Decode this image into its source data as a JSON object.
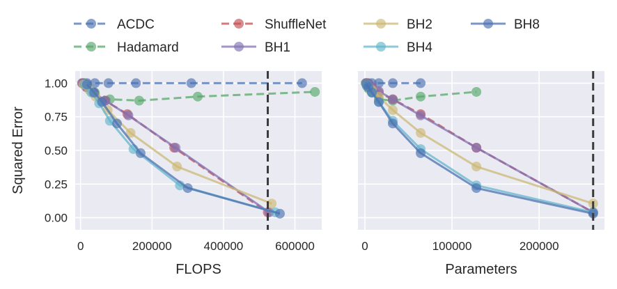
{
  "legend": [
    "ACDC",
    "Hadamard",
    "ShuffleNet",
    "BH1",
    "BH2",
    "BH4",
    "BH8"
  ],
  "series_styles": [
    {
      "name": "ACDC",
      "color": "#4c72b0",
      "dash": true
    },
    {
      "name": "Hadamard",
      "color": "#55a868",
      "dash": true
    },
    {
      "name": "ShuffleNet",
      "color": "#c44e52",
      "dash": true
    },
    {
      "name": "BH1",
      "color": "#8172b2",
      "dash": false
    },
    {
      "name": "BH2",
      "color": "#ccb974",
      "dash": false
    },
    {
      "name": "BH4",
      "color": "#64b5cd",
      "dash": false
    },
    {
      "name": "BH8",
      "color": "#4c72b0",
      "dash": false
    }
  ],
  "chart_data": [
    {
      "type": "line",
      "xlabel": "FLOPS",
      "ylabel": "Squared Error",
      "xlim": [
        -15000,
        675000
      ],
      "ylim": [
        -0.09,
        1.09
      ],
      "xticks": [
        0,
        200000,
        400000,
        600000
      ],
      "xtick_labels": [
        "0",
        "200000",
        "400000",
        "600000"
      ],
      "yticks": [
        0.0,
        0.25,
        0.5,
        0.75,
        1.0
      ],
      "ytick_labels": [
        "0.00",
        "0.25",
        "0.50",
        "0.75",
        "1.00"
      ],
      "vline": 524000,
      "series": [
        {
          "name": "ACDC",
          "x": [
            8000,
            18000,
            40000,
            78000,
            155000,
            310000,
            620000
          ],
          "y": [
            1.0,
            1.0,
            1.0,
            1.0,
            1.0,
            1.0,
            1.0
          ]
        },
        {
          "name": "Hadamard",
          "x": [
            10000,
            20000,
            40000,
            82000,
            164000,
            328000,
            656000
          ],
          "y": [
            1.0,
            0.97,
            0.93,
            0.88,
            0.87,
            0.9,
            0.935
          ]
        },
        {
          "name": "ShuffleNet",
          "x": [
            4000,
            16000,
            35000,
            68000,
            131000,
            262000,
            524000
          ],
          "y": [
            1.0,
            0.97,
            0.93,
            0.87,
            0.77,
            0.52,
            0.04
          ]
        },
        {
          "name": "BH1",
          "x": [
            5000,
            17000,
            36000,
            70000,
            134000,
            266000,
            528000
          ],
          "y": [
            1.0,
            0.97,
            0.93,
            0.87,
            0.76,
            0.52,
            0.04
          ]
        },
        {
          "name": "BH2",
          "x": [
            8000,
            24000,
            42000,
            76000,
            140000,
            270000,
            535000
          ],
          "y": [
            0.99,
            0.95,
            0.9,
            0.8,
            0.63,
            0.38,
            0.105
          ]
        },
        {
          "name": "BH4",
          "x": [
            12000,
            30000,
            52000,
            82000,
            148000,
            278000,
            545000
          ],
          "y": [
            0.99,
            0.93,
            0.85,
            0.72,
            0.51,
            0.24,
            0.04
          ]
        },
        {
          "name": "BH8",
          "x": [
            18000,
            38000,
            60000,
            102000,
            168000,
            300000,
            558000
          ],
          "y": [
            0.99,
            0.93,
            0.86,
            0.7,
            0.48,
            0.22,
            0.03
          ]
        }
      ]
    },
    {
      "type": "line",
      "xlabel": "Parameters",
      "ylabel": "",
      "xlim": [
        -8000,
        275000
      ],
      "ylim": [
        -0.09,
        1.09
      ],
      "xticks": [
        0,
        100000,
        200000
      ],
      "xtick_labels": [
        "0",
        "100000",
        "200000"
      ],
      "yticks": [
        0.0,
        0.25,
        0.5,
        0.75,
        1.0
      ],
      "ytick_labels": [],
      "vline": 262000,
      "series": [
        {
          "name": "ACDC",
          "x": [
            1000,
            2000,
            4000,
            8000,
            16000,
            32000,
            64000
          ],
          "y": [
            1.0,
            1.0,
            1.0,
            1.0,
            1.0,
            1.0,
            1.0
          ]
        },
        {
          "name": "Hadamard",
          "x": [
            1000,
            2000,
            4000,
            8000,
            16000,
            32000,
            64000,
            128000
          ],
          "y": [
            1.0,
            0.98,
            0.96,
            0.93,
            0.88,
            0.87,
            0.9,
            0.935
          ]
        },
        {
          "name": "ShuffleNet",
          "x": [
            2000,
            4000,
            8000,
            16000,
            32000,
            64000,
            128000,
            262000
          ],
          "y": [
            1.0,
            0.98,
            0.97,
            0.93,
            0.88,
            0.77,
            0.52,
            0.04
          ]
        },
        {
          "name": "BH1",
          "x": [
            2000,
            4000,
            8000,
            16000,
            32000,
            64000,
            128000,
            262000
          ],
          "y": [
            1.0,
            0.98,
            0.97,
            0.94,
            0.88,
            0.76,
            0.52,
            0.04
          ]
        },
        {
          "name": "BH2",
          "x": [
            2000,
            4000,
            8000,
            16000,
            32000,
            64000,
            128000,
            262000
          ],
          "y": [
            0.99,
            0.97,
            0.95,
            0.9,
            0.8,
            0.63,
            0.38,
            0.105
          ]
        },
        {
          "name": "BH4",
          "x": [
            2000,
            4000,
            8000,
            16000,
            32000,
            64000,
            128000,
            262000
          ],
          "y": [
            0.99,
            0.97,
            0.93,
            0.86,
            0.72,
            0.51,
            0.24,
            0.04
          ]
        },
        {
          "name": "BH8",
          "x": [
            2000,
            4000,
            8000,
            16000,
            32000,
            64000,
            128000,
            262000
          ],
          "y": [
            0.99,
            0.97,
            0.93,
            0.86,
            0.7,
            0.48,
            0.22,
            0.03
          ]
        }
      ]
    }
  ]
}
